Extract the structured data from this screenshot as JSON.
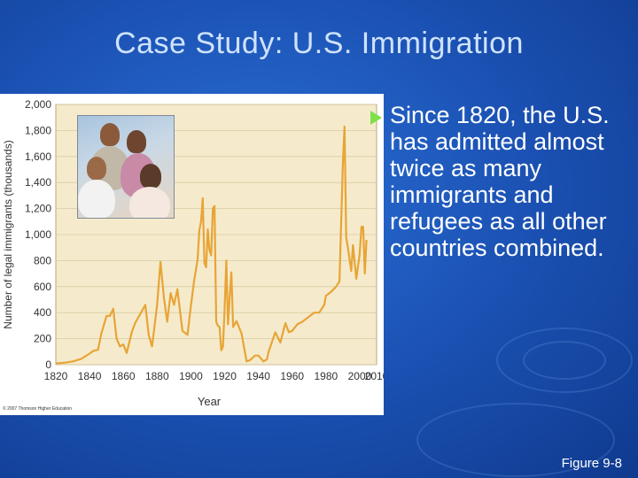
{
  "slide": {
    "title": "Case Study: U.S. Immigration",
    "bullet": "Since 1820, the U.S. has admitted almost twice as many immigrants and refugees as all other countries combined.",
    "figure_label": "Figure 9-8",
    "copyright": "© 2007 Thomson Higher Education"
  },
  "colors": {
    "line": "#e8a437",
    "plot_bg": "#f5ebcc",
    "title": "#cfe3ff",
    "bullet_arrow": "#7fe04a"
  },
  "chart_data": {
    "type": "line",
    "xlabel": "Year",
    "ylabel": "Number of legal immigrants (thousands)",
    "xlim": [
      1820,
      2010
    ],
    "ylim": [
      0,
      2000
    ],
    "x_ticks": [
      "1820",
      "1840",
      "1860",
      "1880",
      "1900",
      "1920",
      "1940",
      "1960",
      "1980",
      "2000",
      "2010"
    ],
    "y_ticks": [
      "0",
      "200",
      "400",
      "600",
      "800",
      "1,000",
      "1,200",
      "1,400",
      "1,600",
      "1,800",
      "2,000"
    ],
    "grid": true,
    "x": [
      1820,
      1825,
      1830,
      1835,
      1840,
      1842,
      1845,
      1847,
      1850,
      1852,
      1854,
      1856,
      1858,
      1860,
      1862,
      1865,
      1867,
      1870,
      1873,
      1875,
      1877,
      1880,
      1882,
      1884,
      1886,
      1888,
      1890,
      1892,
      1895,
      1898,
      1900,
      1902,
      1904,
      1905,
      1906,
      1907,
      1908,
      1909,
      1910,
      1911,
      1912,
      1913,
      1914,
      1915,
      1916,
      1917,
      1918,
      1919,
      1920,
      1921,
      1922,
      1923,
      1924,
      1925,
      1927,
      1930,
      1933,
      1935,
      1938,
      1940,
      1943,
      1945,
      1946,
      1950,
      1953,
      1956,
      1958,
      1960,
      1963,
      1966,
      1969,
      1970,
      1973,
      1976,
      1979,
      1980,
      1983,
      1986,
      1988,
      1989,
      1990,
      1991,
      1992,
      1993,
      1995,
      1996,
      1998,
      2000,
      2001,
      2002,
      2003,
      2004
    ],
    "y": [
      10,
      15,
      25,
      45,
      85,
      105,
      115,
      240,
      375,
      375,
      430,
      200,
      140,
      155,
      90,
      250,
      320,
      390,
      460,
      230,
      140,
      460,
      790,
      520,
      330,
      550,
      460,
      580,
      260,
      230,
      450,
      650,
      810,
      1030,
      1100,
      1280,
      780,
      750,
      1040,
      880,
      840,
      1200,
      1220,
      330,
      300,
      290,
      110,
      140,
      430,
      800,
      310,
      520,
      710,
      290,
      335,
      240,
      25,
      35,
      70,
      70,
      25,
      40,
      100,
      250,
      170,
      320,
      250,
      260,
      310,
      330,
      360,
      370,
      400,
      400,
      460,
      530,
      560,
      600,
      640,
      1090,
      1540,
      1830,
      980,
      900,
      720,
      920,
      660,
      850,
      1060,
      1060,
      700,
      960
    ]
  }
}
